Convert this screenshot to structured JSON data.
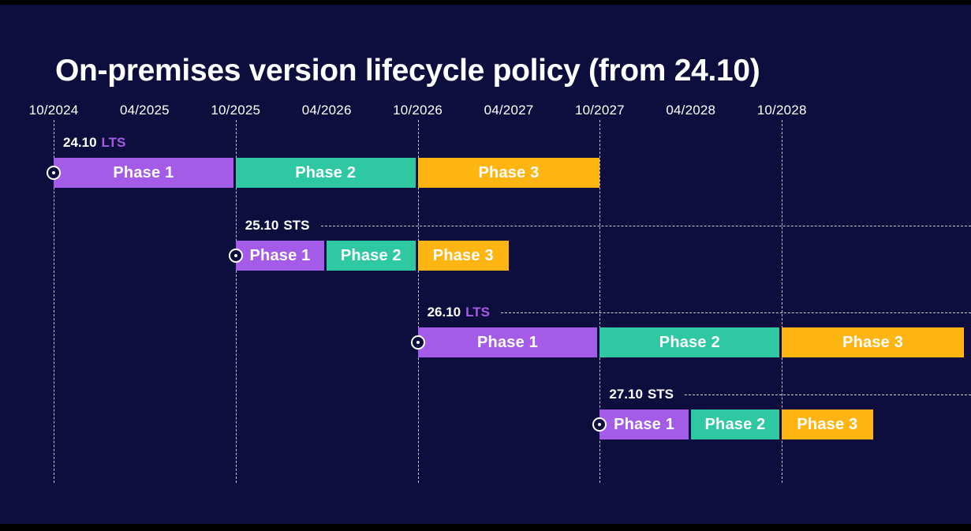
{
  "title": "On-premises version lifecycle policy (from 24.10)",
  "colors": {
    "background": "#0E0E3E",
    "purple": "#A35BE8",
    "teal": "#2EC8A2",
    "yellow": "#FFB511",
    "white": "#FFFFFF"
  },
  "chart_data": {
    "type": "gantt",
    "title": "On-premises version lifecycle policy (from 24.10)",
    "axis": {
      "tick_labels": [
        "10/2024",
        "04/2025",
        "10/2025",
        "04/2026",
        "10/2026",
        "04/2027",
        "10/2027",
        "04/2028",
        "10/2028"
      ],
      "gridlines_at": [
        "10/2024",
        "10/2025",
        "10/2026",
        "10/2027",
        "10/2028"
      ],
      "unit": "month/year, ticks every 6 months"
    },
    "rows": [
      {
        "version": "24.10",
        "release_type": "LTS",
        "type_color": "purple",
        "start": "10/2024",
        "dashed_line": false,
        "phases": [
          {
            "label": "Phase 1",
            "start": "10/2024",
            "end": "10/2025",
            "color": "purple"
          },
          {
            "label": "Phase 2",
            "start": "10/2025",
            "end": "10/2026",
            "color": "teal"
          },
          {
            "label": "Phase 3",
            "start": "10/2026",
            "end": "10/2027",
            "color": "yellow"
          }
        ]
      },
      {
        "version": "25.10",
        "release_type": "STS",
        "type_color": "white",
        "start": "10/2025",
        "dashed_line": true,
        "phases": [
          {
            "label": "Phase 1",
            "start": "10/2025",
            "end": "04/2026",
            "color": "purple"
          },
          {
            "label": "Phase 2",
            "start": "04/2026",
            "end": "10/2026",
            "color": "teal"
          },
          {
            "label": "Phase 3",
            "start": "10/2026",
            "end": "04/2027",
            "color": "yellow"
          }
        ]
      },
      {
        "version": "26.10",
        "release_type": "LTS",
        "type_color": "purple",
        "start": "10/2026",
        "dashed_line": true,
        "phases": [
          {
            "label": "Phase 1",
            "start": "10/2026",
            "end": "10/2027",
            "color": "purple"
          },
          {
            "label": "Phase 2",
            "start": "10/2027",
            "end": "10/2028",
            "color": "teal"
          },
          {
            "label": "Phase 3",
            "start": "10/2028",
            "end": "10/2029",
            "color": "yellow"
          }
        ]
      },
      {
        "version": "27.10",
        "release_type": "STS",
        "type_color": "white",
        "start": "10/2027",
        "dashed_line": true,
        "phases": [
          {
            "label": "Phase 1",
            "start": "10/2027",
            "end": "04/2028",
            "color": "purple"
          },
          {
            "label": "Phase 2",
            "start": "04/2028",
            "end": "10/2028",
            "color": "teal"
          },
          {
            "label": "Phase 3",
            "start": "10/2028",
            "end": "04/2029",
            "color": "yellow"
          }
        ]
      }
    ]
  }
}
